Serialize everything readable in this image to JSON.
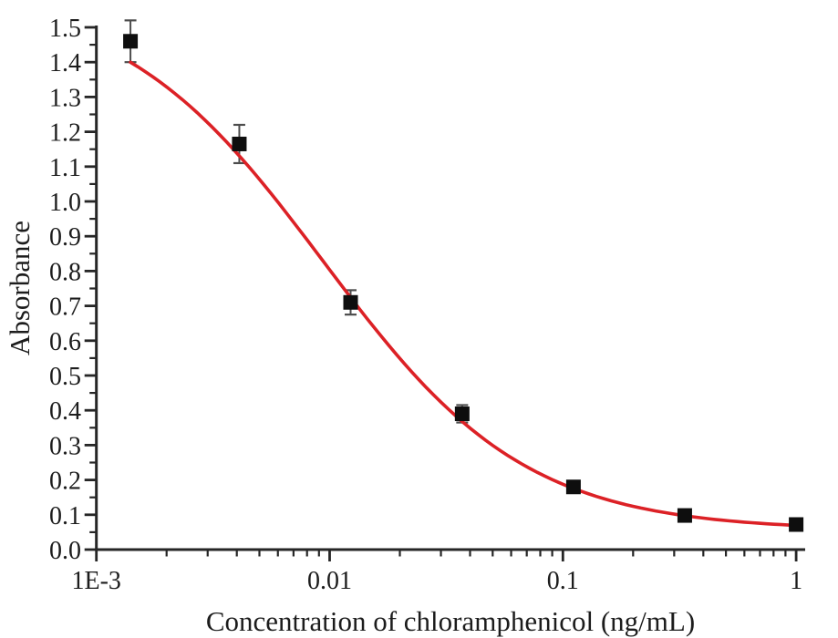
{
  "chart_data": {
    "type": "scatter",
    "title": "",
    "xlabel": "Concentration of chloramphenicol (ng/mL)",
    "ylabel": "Absorbance",
    "x_scale": "log",
    "xlim": [
      0.001,
      1.09
    ],
    "ylim": [
      0.0,
      1.5
    ],
    "grid": false,
    "legend": null,
    "x_ticks": {
      "values": [
        0.001,
        0.01,
        0.1,
        1
      ],
      "labels": [
        "1E-3",
        "0.01",
        "0.1",
        "1"
      ],
      "minor_multiples": [
        2,
        3,
        4,
        5,
        6,
        7,
        8,
        9
      ]
    },
    "y_ticks": {
      "labels": [
        "0.0",
        "0.1",
        "0.2",
        "0.3",
        "0.4",
        "0.5",
        "0.6",
        "0.7",
        "0.8",
        "0.9",
        "1.0",
        "1.1",
        "1.2",
        "1.3",
        "1.4",
        "1.5"
      ],
      "major_step": 0.1,
      "minor_step": 0.05
    },
    "series": [
      {
        "name": "standard-points",
        "type": "scatter",
        "marker": "square",
        "points": [
          {
            "x": 0.0014,
            "y": 1.46,
            "err": 0.06
          },
          {
            "x": 0.0041,
            "y": 1.165,
            "err": 0.055
          },
          {
            "x": 0.0123,
            "y": 0.71,
            "err": 0.035
          },
          {
            "x": 0.037,
            "y": 0.39,
            "err": 0.025
          },
          {
            "x": 0.111,
            "y": 0.18,
            "err": 0.012
          },
          {
            "x": 0.333,
            "y": 0.098,
            "err": 0.008
          },
          {
            "x": 1.0,
            "y": 0.072,
            "err": 0.008
          }
        ]
      },
      {
        "name": "4pl-fit-curve",
        "type": "curve",
        "model": "4PL",
        "params": {
          "A": 1.6,
          "B": 1.0,
          "C": 0.0094,
          "D": 0.055
        },
        "x_range": [
          0.0014,
          1.0
        ]
      }
    ]
  },
  "style": {
    "curve_color": "#dc2126",
    "marker_color": "#0e0e0e",
    "error_bar_color": "#4d4d4d",
    "axis_color": "#262626",
    "text_color": "#1c1c1c",
    "background": "#ffffff"
  }
}
